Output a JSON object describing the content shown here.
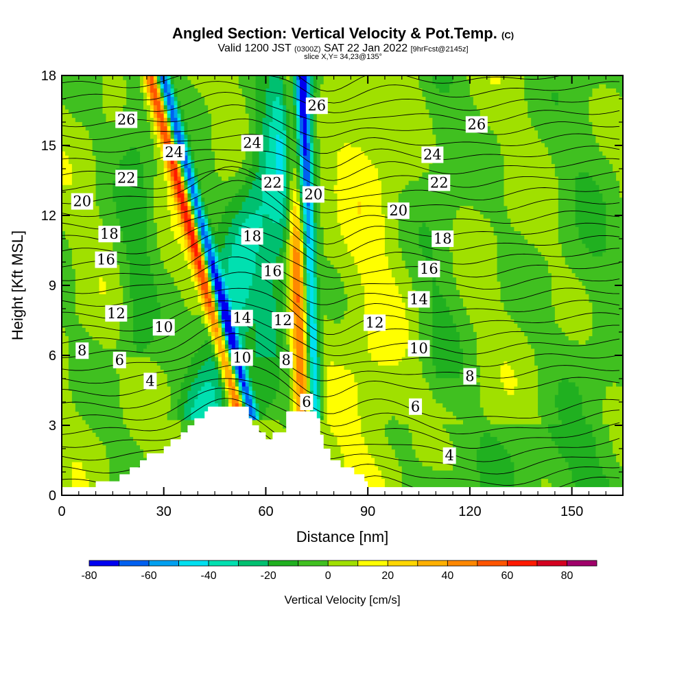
{
  "header": {
    "title_main": "Angled Section: Vertical Velocity & Pot.Temp.",
    "title_unit": "(C)",
    "valid_prefix": "Valid 1200 JST",
    "valid_utc": "(0300Z)",
    "valid_date": "SAT 22 Jan 2022",
    "forecast_tag": "[9hrFcst@2145z]",
    "slice_info": "slice X,Y= 34,23@135°"
  },
  "chart_data": {
    "type": "heatmap",
    "xlabel": "Distance [nm]",
    "ylabel": "Height [Kft MSL]",
    "xlim": [
      0,
      165
    ],
    "ylim": [
      0,
      18
    ],
    "x_ticks": [
      0,
      30,
      60,
      90,
      120,
      150
    ],
    "y_ticks": [
      0,
      3,
      6,
      9,
      12,
      15,
      18
    ],
    "colorbar": {
      "label": "Vertical Velocity [cm/s]",
      "ticks": [
        -80,
        -60,
        -40,
        -20,
        0,
        20,
        40,
        60,
        80
      ],
      "levels": [
        -80,
        -70,
        -60,
        -50,
        -40,
        -30,
        -20,
        -10,
        0,
        10,
        20,
        30,
        40,
        50,
        60,
        70,
        80,
        90
      ],
      "colors": [
        "#0000f0",
        "#0060f0",
        "#00a0f0",
        "#00e0f0",
        "#00e0b0",
        "#00c070",
        "#20b020",
        "#40c020",
        "#a0e000",
        "#ffff00",
        "#ffd700",
        "#ffb000",
        "#ff8800",
        "#ff5500",
        "#ff1a00",
        "#d40020",
        "#a0006a",
        "#6a00a0"
      ]
    },
    "contour_labels": [
      {
        "text": "26",
        "x": 19,
        "y": 16.1
      },
      {
        "text": "24",
        "x": 33,
        "y": 14.7
      },
      {
        "text": "22",
        "x": 19,
        "y": 13.6
      },
      {
        "text": "20",
        "x": 6,
        "y": 12.6
      },
      {
        "text": "18",
        "x": 14,
        "y": 11.2
      },
      {
        "text": "16",
        "x": 13,
        "y": 10.1
      },
      {
        "text": "12",
        "x": 16,
        "y": 7.8
      },
      {
        "text": "10",
        "x": 30,
        "y": 7.2
      },
      {
        "text": "8",
        "x": 6,
        "y": 6.2
      },
      {
        "text": "6",
        "x": 17,
        "y": 5.8
      },
      {
        "text": "4",
        "x": 26,
        "y": 4.9
      },
      {
        "text": "24",
        "x": 56,
        "y": 15.1
      },
      {
        "text": "22",
        "x": 62,
        "y": 13.4
      },
      {
        "text": "18",
        "x": 56,
        "y": 11.1
      },
      {
        "text": "16",
        "x": 62,
        "y": 9.6
      },
      {
        "text": "14",
        "x": 53,
        "y": 7.6
      },
      {
        "text": "12",
        "x": 65,
        "y": 7.5
      },
      {
        "text": "10",
        "x": 53,
        "y": 5.9
      },
      {
        "text": "8",
        "x": 66,
        "y": 5.8
      },
      {
        "text": "6",
        "x": 72,
        "y": 4.0
      },
      {
        "text": "26",
        "x": 75,
        "y": 16.7
      },
      {
        "text": "20",
        "x": 74,
        "y": 12.9
      },
      {
        "text": "12",
        "x": 92,
        "y": 7.4
      },
      {
        "text": "20",
        "x": 99,
        "y": 12.2
      },
      {
        "text": "14",
        "x": 105,
        "y": 8.4
      },
      {
        "text": "10",
        "x": 105,
        "y": 6.3
      },
      {
        "text": "6",
        "x": 104,
        "y": 3.8
      },
      {
        "text": "24",
        "x": 109,
        "y": 14.6
      },
      {
        "text": "22",
        "x": 111,
        "y": 13.4
      },
      {
        "text": "18",
        "x": 112,
        "y": 11.0
      },
      {
        "text": "16",
        "x": 108,
        "y": 9.7
      },
      {
        "text": "8",
        "x": 120,
        "y": 5.1
      },
      {
        "text": "4",
        "x": 114,
        "y": 1.7
      },
      {
        "text": "26",
        "x": 122,
        "y": 15.9
      }
    ],
    "terrain_profile": [
      [
        10,
        0.6
      ],
      [
        17,
        0.9
      ],
      [
        20,
        1.2
      ],
      [
        23,
        1.5
      ],
      [
        25,
        1.8
      ],
      [
        29,
        1.8
      ],
      [
        30,
        2.1
      ],
      [
        32,
        2.4
      ],
      [
        35,
        2.7
      ],
      [
        37,
        3.0
      ],
      [
        39,
        3.3
      ],
      [
        42,
        3.6
      ],
      [
        43,
        3.8
      ],
      [
        52,
        3.8
      ],
      [
        55,
        3.3
      ],
      [
        56,
        3.0
      ],
      [
        58,
        2.7
      ],
      [
        60,
        2.4
      ],
      [
        62,
        2.7
      ],
      [
        65,
        2.7
      ],
      [
        66,
        3.6
      ],
      [
        72,
        3.6
      ],
      [
        75,
        3.3
      ],
      [
        76,
        2.6
      ],
      [
        77,
        2.0
      ],
      [
        79,
        1.5
      ],
      [
        82,
        1.2
      ],
      [
        86,
        0.9
      ],
      [
        89,
        0.6
      ]
    ]
  }
}
